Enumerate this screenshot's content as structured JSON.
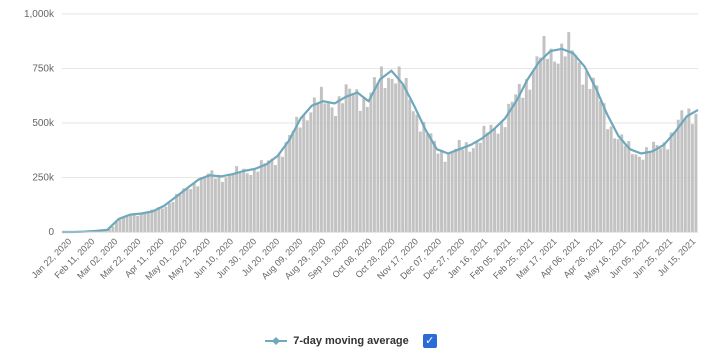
{
  "chart_data": {
    "type": "bar",
    "title": "",
    "xlabel": "",
    "ylabel": "",
    "ylim": [
      0,
      1000000
    ],
    "y_ticks": [
      0,
      250000,
      500000,
      750000,
      1000000
    ],
    "y_tick_labels": [
      "0",
      "250k",
      "500k",
      "750k",
      "1,000k"
    ],
    "grid": true,
    "legend_position": "bottom-center",
    "x_tick_labels": [
      "Jan 22, 2020",
      "Feb 11, 2020",
      "Mar 02, 2020",
      "Mar 22, 2020",
      "Apr 11, 2020",
      "May 01, 2020",
      "May 21, 2020",
      "Jun 10, 2020",
      "Jun 30, 2020",
      "Jul 20, 2020",
      "Aug 09, 2020",
      "Aug 29, 2020",
      "Sep 18, 2020",
      "Oct 08, 2020",
      "Oct 28, 2020",
      "Nov 17, 2020",
      "Dec 07, 2020",
      "Dec 27, 2020",
      "Jan 16, 2021",
      "Feb 05, 2021",
      "Feb 25, 2021",
      "Mar 17, 2021",
      "Apr 06, 2021",
      "Apr 26, 2021",
      "May 16, 2021",
      "Jun 05, 2021",
      "Jun 25, 2021",
      "Jul 15, 2021"
    ],
    "bar_color": "#c2c2c2",
    "line_color": "#6ea8bc",
    "series": [
      {
        "name": "7-day moving average",
        "type": "line",
        "values": [
          0,
          0,
          2000,
          5000,
          10000,
          60000,
          80000,
          85000,
          95000,
          120000,
          160000,
          200000,
          240000,
          260000,
          255000,
          265000,
          280000,
          290000,
          310000,
          350000,
          420000,
          520000,
          580000,
          600000,
          590000,
          620000,
          640000,
          600000,
          700000,
          740000,
          680000,
          580000,
          470000,
          380000,
          360000,
          380000,
          400000,
          430000,
          470000,
          520000,
          600000,
          700000,
          780000,
          830000,
          840000,
          820000,
          760000,
          660000,
          540000,
          440000,
          380000,
          360000,
          370000,
          400000,
          460000,
          530000,
          560000
        ]
      }
    ]
  },
  "legend": {
    "items": [
      {
        "label": "7-day moving average",
        "checked": true
      }
    ]
  }
}
